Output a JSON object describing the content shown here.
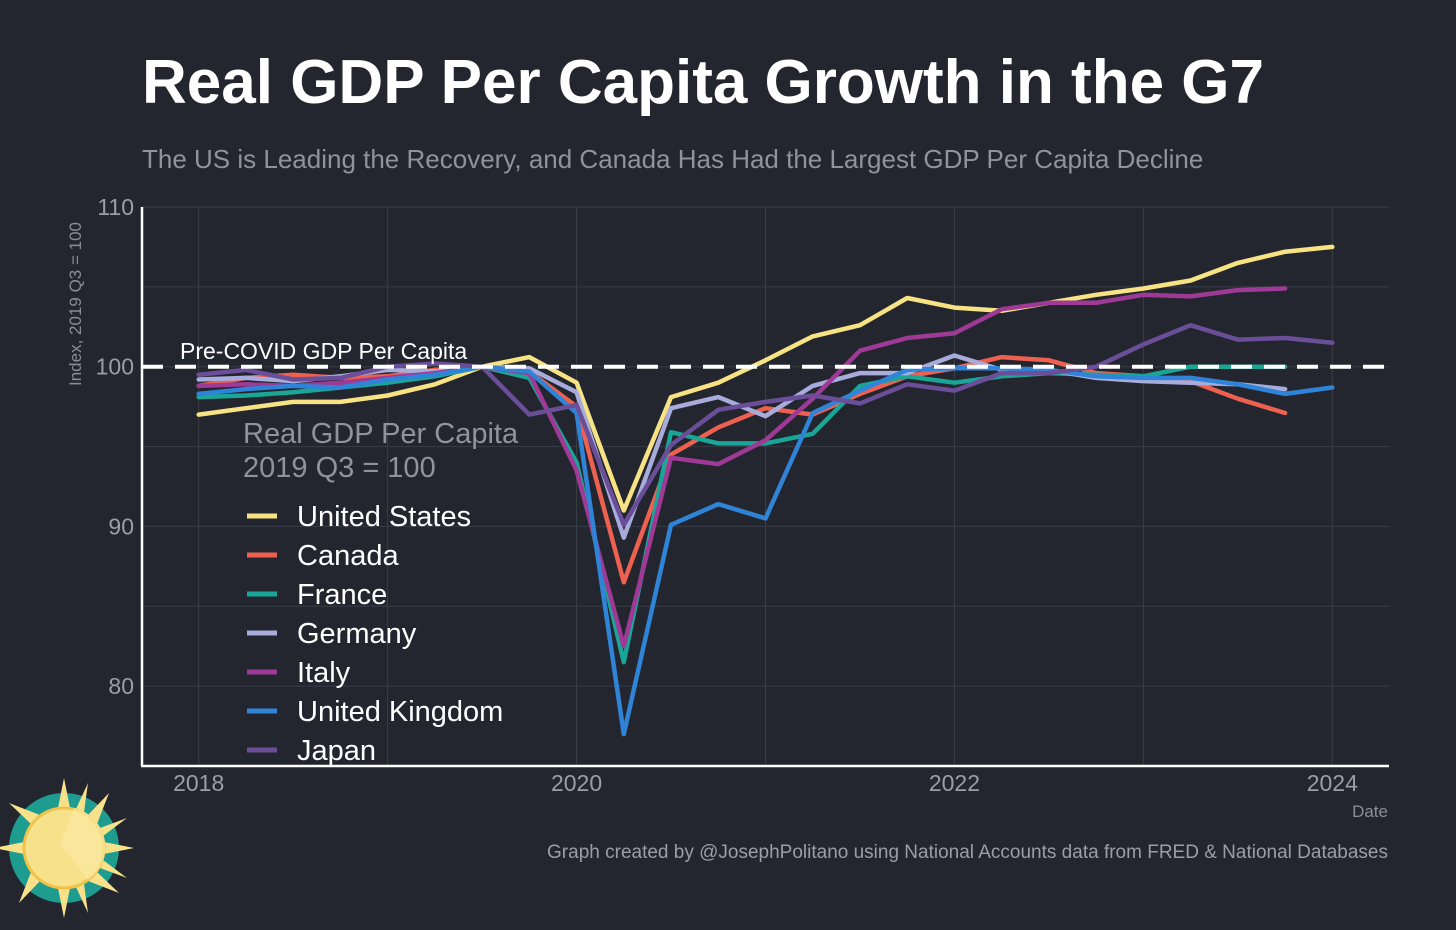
{
  "header": {
    "title": "Real GDP Per Capita Growth in the G7",
    "subtitle": "The US is Leading the Recovery, and Canada Has Had the Largest GDP Per Capita Decline"
  },
  "footer": {
    "credit": "Graph created by @JosephPolitano using National Accounts data from FRED & National Databases"
  },
  "colors": {
    "background": "#23262e",
    "grid": "#3a3e47",
    "axis": "#ffffff",
    "reference_line": "#ffffff"
  },
  "chart_data": {
    "type": "line",
    "title": "Real GDP Per Capita Growth in the G7",
    "subtitle": "The US is Leading the Recovery, and Canada Has Had the Largest GDP Per Capita Decline",
    "xlabel": "Date",
    "ylabel": "Index, 2019 Q3 = 100",
    "xlim": [
      2017.7,
      2024.3
    ],
    "ylim": [
      75,
      110
    ],
    "x_ticks": [
      "2018",
      "2020",
      "2022",
      "2024"
    ],
    "y_ticks": [
      "80",
      "90",
      "100",
      "110"
    ],
    "grid": true,
    "legend": {
      "title_line1": "Real GDP Per Capita",
      "title_line2": "2019 Q3 = 100",
      "placement": "left"
    },
    "reference_line": {
      "y": 100,
      "label": "Pre-COVID GDP Per Capita",
      "style": "dashed"
    },
    "x": [
      "2018 Q1",
      "2018 Q2",
      "2018 Q3",
      "2018 Q4",
      "2019 Q1",
      "2019 Q2",
      "2019 Q3",
      "2019 Q4",
      "2020 Q1",
      "2020 Q2",
      "2020 Q3",
      "2020 Q4",
      "2021 Q1",
      "2021 Q2",
      "2021 Q3",
      "2021 Q4",
      "2022 Q1",
      "2022 Q2",
      "2022 Q3",
      "2022 Q4",
      "2023 Q1",
      "2023 Q2",
      "2023 Q3",
      "2023 Q4",
      "2024 Q1"
    ],
    "series": [
      {
        "name": "United States",
        "color": "#f7e384",
        "values": [
          97.0,
          97.4,
          97.8,
          97.8,
          98.2,
          98.9,
          100.0,
          100.6,
          99.0,
          91.0,
          98.1,
          99.0,
          100.4,
          101.9,
          102.6,
          104.3,
          103.7,
          103.5,
          104.0,
          104.5,
          104.9,
          105.4,
          106.5,
          107.2,
          107.5
        ]
      },
      {
        "name": "Canada",
        "color": "#ee6150",
        "values": [
          98.8,
          99.3,
          99.5,
          99.3,
          99.4,
          99.8,
          100.0,
          99.7,
          97.5,
          86.5,
          94.5,
          96.2,
          97.4,
          97.0,
          98.3,
          99.4,
          99.9,
          100.6,
          100.4,
          99.6,
          99.4,
          99.1,
          98.0,
          97.1,
          null
        ]
      },
      {
        "name": "France",
        "color": "#19a697",
        "values": [
          98.1,
          98.2,
          98.4,
          98.7,
          99.0,
          99.4,
          100.0,
          99.3,
          94.0,
          81.5,
          95.9,
          95.2,
          95.2,
          95.8,
          98.8,
          99.4,
          99.0,
          99.4,
          99.6,
          99.5,
          99.4,
          100.0,
          100.0,
          100.0,
          null
        ]
      },
      {
        "name": "Germany",
        "color": "#a7acdc",
        "values": [
          99.2,
          99.3,
          99.1,
          99.4,
          99.8,
          99.7,
          100.0,
          99.9,
          98.4,
          89.3,
          97.4,
          98.1,
          96.9,
          98.8,
          99.6,
          99.6,
          100.7,
          99.8,
          99.8,
          99.3,
          99.1,
          99.0,
          98.9,
          98.6,
          null
        ]
      },
      {
        "name": "Italy",
        "color": "#9f3996",
        "values": [
          98.8,
          98.9,
          98.8,
          99.0,
          99.3,
          99.6,
          100.0,
          99.6,
          93.5,
          82.5,
          94.3,
          93.9,
          95.4,
          98.0,
          101.0,
          101.8,
          102.1,
          103.6,
          104.0,
          104.0,
          104.5,
          104.4,
          104.8,
          104.9,
          null
        ]
      },
      {
        "name": "United Kingdom",
        "color": "#3084d8",
        "values": [
          98.3,
          98.6,
          98.8,
          98.7,
          99.2,
          99.5,
          100.0,
          99.7,
          97.1,
          77.0,
          90.1,
          91.4,
          90.5,
          97.1,
          98.5,
          99.8,
          99.9,
          99.9,
          99.8,
          99.4,
          99.3,
          99.3,
          98.9,
          98.3,
          98.7
        ]
      },
      {
        "name": "Japan",
        "color": "#6a4f98",
        "values": [
          99.5,
          99.8,
          99.2,
          99.3,
          100.0,
          100.2,
          100.0,
          97.0,
          97.6,
          90.1,
          95.1,
          97.3,
          97.8,
          98.2,
          97.7,
          98.9,
          98.5,
          99.6,
          99.6,
          100.0,
          101.4,
          102.6,
          101.7,
          101.8,
          101.5
        ]
      }
    ]
  }
}
